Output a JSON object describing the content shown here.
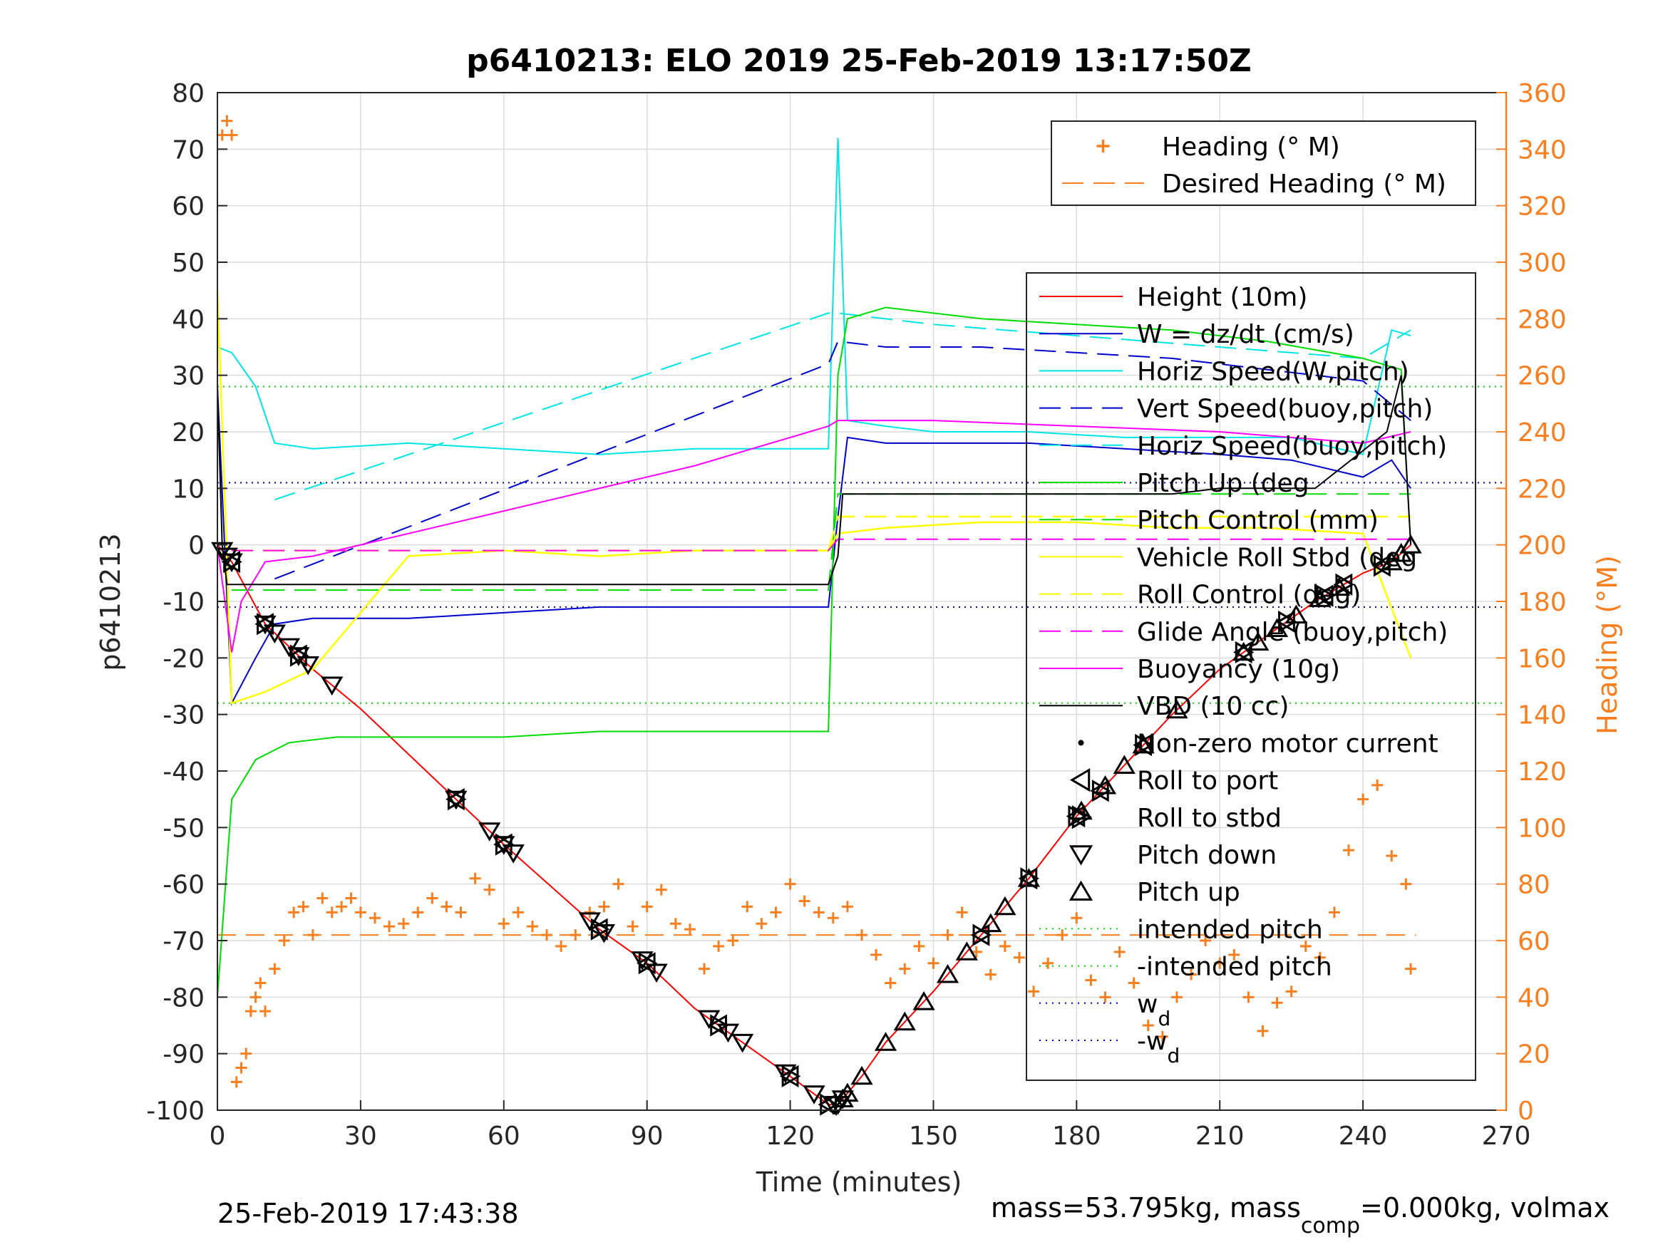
{
  "chart_data": {
    "type": "line",
    "title": "p6410213: ELO 2019 25-Feb-2019 13:17:50Z",
    "xlabel": "Time (minutes)",
    "ylabel_left": "p6410213",
    "ylabel_right": "Heading (°M)",
    "xlim": [
      0,
      270
    ],
    "ylim_left": [
      -100,
      80
    ],
    "ylim_right": [
      0,
      360
    ],
    "xticks": [
      "0",
      "30",
      "60",
      "90",
      "120",
      "150",
      "180",
      "210",
      "240",
      "270"
    ],
    "yticks_left": [
      "80",
      "70",
      "60",
      "50",
      "40",
      "30",
      "20",
      "10",
      "0",
      "-10",
      "-20",
      "-30",
      "-40",
      "-50",
      "-60",
      "-70",
      "-80",
      "-90",
      "-100"
    ],
    "yticks_right": [
      "360",
      "340",
      "320",
      "300",
      "280",
      "260",
      "240",
      "220",
      "200",
      "180",
      "160",
      "140",
      "120",
      "100",
      "80",
      "60",
      "40",
      "20",
      "0"
    ],
    "grid": true,
    "footer_left": "25-Feb-2019 17:43:38",
    "footer_right": {
      "prefix": "mass=53.795kg, mass",
      "subscript": "comp",
      "suffix": "=0.000kg, volmax"
    },
    "legend_heading": [
      {
        "label": "Heading (° M)",
        "color": "#f77f1f",
        "style": "plus"
      },
      {
        "label": "Desired Heading (° M)",
        "color": "#f77f1f",
        "style": "dash"
      }
    ],
    "legend_main": [
      {
        "label": "Height (10m)",
        "color": "#ff0000",
        "style": "solid"
      },
      {
        "label": "W = dz/dt (cm/s)",
        "color": "#0000cc",
        "style": "solid"
      },
      {
        "label": "Horiz Speed(W,pitch)",
        "color": "#00e5e5",
        "style": "solid"
      },
      {
        "label": "Vert Speed(buoy,pitch)",
        "color": "#0000cc",
        "style": "dash"
      },
      {
        "label": "Horiz Speed(buoy,pitch)",
        "color": "#00e5e5",
        "style": "dash"
      },
      {
        "label": "Pitch Up (deg",
        "color": "#00dd00",
        "style": "solid"
      },
      {
        "label": "Pitch Control (mm)",
        "color": "#00dd00",
        "style": "dash"
      },
      {
        "label": "Vehicle Roll Stbd (deg",
        "color": "#ffff00",
        "style": "solid"
      },
      {
        "label": "Roll Control (deg)",
        "color": "#ffff00",
        "style": "dash"
      },
      {
        "label": "Glide Angle (buoy,pitch)",
        "color": "#ff00ff",
        "style": "dash"
      },
      {
        "label": "Buoyancy (10g)",
        "color": "#ff00ff",
        "style": "solid"
      },
      {
        "label": "VBD (10 cc)",
        "color": "#000000",
        "style": "solid"
      },
      {
        "label": "Non-zero motor current",
        "color": "#000000",
        "style": "dot"
      },
      {
        "label": "Roll to port",
        "color": "#000000",
        "style": "tri-left"
      },
      {
        "label": "Roll to stbd",
        "color": "#000000",
        "style": "tri-right"
      },
      {
        "label": "Pitch down",
        "color": "#000000",
        "style": "tri-down"
      },
      {
        "label": "Pitch up",
        "color": "#000000",
        "style": "tri-up"
      },
      {
        "label": "intended pitch",
        "color": "#00dd00",
        "style": "dot-line"
      },
      {
        "label": "-intended pitch",
        "color": "#00dd00",
        "style": "dot-line"
      },
      {
        "label": "w",
        "sub": "d",
        "color": "#0000dd",
        "style": "dot-line"
      },
      {
        "label": "-w",
        "sub": "d",
        "color": "#0000dd",
        "style": "dot-line"
      }
    ],
    "reference_lines": {
      "intended_pitch": 28,
      "neg_intended_pitch": -28,
      "wd": 11,
      "neg_wd": -11,
      "desired_heading": 62
    },
    "series": [
      {
        "name": "Height (10m)",
        "color": "#ff0000",
        "axis": "left",
        "x": [
          0,
          3,
          10,
          20,
          30,
          50,
          60,
          80,
          90,
          100,
          110,
          120,
          128,
          130,
          135,
          140,
          150,
          160,
          170,
          180,
          190,
          200,
          210,
          220,
          230,
          240,
          246,
          250
        ],
        "y": [
          0,
          -3,
          -14,
          -22,
          -29,
          -45,
          -53,
          -68,
          -74,
          -82,
          -88,
          -94,
          -99,
          -99,
          -94,
          -88,
          -79,
          -69,
          -59,
          -48,
          -39,
          -30,
          -22,
          -16,
          -10,
          -5,
          -3,
          0
        ]
      },
      {
        "name": "W = dz/dt (cm/s)",
        "color": "#0000cc",
        "axis": "left",
        "x": [
          0,
          3,
          8,
          12,
          20,
          40,
          60,
          80,
          100,
          120,
          128,
          130,
          132,
          140,
          150,
          170,
          190,
          210,
          225,
          240,
          246,
          250
        ],
        "y": [
          28,
          -28,
          -20,
          -14,
          -13,
          -13,
          -12,
          -11,
          -11,
          -11,
          -11,
          5,
          19,
          18,
          18,
          18,
          17,
          16,
          15,
          12,
          15,
          10
        ]
      },
      {
        "name": "Horiz Speed(W,pitch)",
        "color": "#00e5e5",
        "axis": "left",
        "x": [
          0,
          3,
          8,
          12,
          20,
          40,
          60,
          80,
          100,
          120,
          128,
          130,
          132,
          140,
          150,
          170,
          190,
          210,
          225,
          240,
          246,
          250
        ],
        "y": [
          35,
          34,
          28,
          18,
          17,
          18,
          17,
          16,
          17,
          17,
          17,
          72,
          22,
          21,
          20,
          20,
          19,
          19,
          19,
          16,
          38,
          37
        ]
      },
      {
        "name": "Vert Speed(buoy,pitch)",
        "color": "#0000cc",
        "axis": "left",
        "x": [
          12,
          128,
          130,
          140,
          160,
          180,
          200,
          220,
          240,
          250
        ],
        "y": [
          -6,
          32,
          36,
          35,
          35,
          34,
          33,
          31,
          29,
          22
        ]
      },
      {
        "name": "Horiz Speed(buoy,pitch)",
        "color": "#00e5e5",
        "axis": "left",
        "x": [
          12,
          128,
          130,
          150,
          180,
          210,
          240,
          250
        ],
        "y": [
          8,
          41,
          41,
          39,
          37,
          35,
          33,
          38
        ]
      },
      {
        "name": "Pitch Up (deg",
        "color": "#00dd00",
        "axis": "left",
        "x": [
          0,
          3,
          8,
          15,
          25,
          40,
          60,
          80,
          100,
          120,
          128,
          130,
          132,
          140,
          160,
          180,
          200,
          220,
          240,
          248,
          250
        ],
        "y": [
          -80,
          -45,
          -38,
          -35,
          -34,
          -34,
          -34,
          -33,
          -33,
          -33,
          -33,
          30,
          40,
          42,
          40,
          39,
          38,
          36,
          33,
          31,
          0
        ]
      },
      {
        "name": "Pitch Control (mm)",
        "color": "#00dd00",
        "axis": "left",
        "x": [
          3,
          128,
          130,
          250
        ],
        "y": [
          -8,
          -8,
          9,
          9
        ]
      },
      {
        "name": "Vehicle Roll Stbd (deg",
        "color": "#ffff00",
        "axis": "left",
        "x": [
          0,
          3,
          10,
          20,
          40,
          60,
          80,
          100,
          120,
          128,
          130,
          140,
          160,
          180,
          200,
          220,
          240,
          250
        ],
        "y": [
          45,
          -28,
          -26,
          -22,
          -2,
          -1,
          -2,
          -1,
          -1,
          -1,
          2,
          3,
          4,
          4,
          3,
          3,
          2,
          -20
        ]
      },
      {
        "name": "Roll Control (deg)",
        "color": "#ffff00",
        "axis": "left",
        "x": [
          3,
          128,
          130,
          250
        ],
        "y": [
          -1,
          -1,
          5,
          5
        ]
      },
      {
        "name": "Glide Angle (buoy,pitch)",
        "color": "#ff00ff",
        "axis": "left",
        "x": [
          3,
          128,
          130,
          250
        ],
        "y": [
          -1,
          -1,
          1,
          1
        ]
      },
      {
        "name": "Buoyancy (10g)",
        "color": "#ff00ff",
        "axis": "left",
        "x": [
          0,
          3,
          5,
          10,
          20,
          60,
          100,
          128,
          130,
          150,
          180,
          210,
          240,
          250
        ],
        "y": [
          0,
          -19,
          -10,
          -3,
          -2,
          6,
          14,
          21,
          22,
          22,
          21,
          20,
          18,
          20
        ]
      },
      {
        "name": "VBD (10 cc)",
        "color": "#000000",
        "axis": "left",
        "x": [
          0,
          1,
          2,
          3,
          20,
          60,
          100,
          128,
          130,
          131,
          150,
          180,
          200,
          210,
          230,
          245,
          248,
          250
        ],
        "y": [
          28,
          0,
          -7,
          -7,
          -7,
          -7,
          -7,
          -7,
          -2,
          9,
          9,
          9,
          9,
          10,
          10,
          20,
          30,
          0
        ]
      }
    ],
    "heading_points": {
      "x": [
        1,
        2,
        3,
        4,
        5,
        6,
        7,
        8,
        9,
        10,
        12,
        14,
        16,
        18,
        20,
        22,
        24,
        26,
        28,
        30,
        33,
        36,
        39,
        42,
        45,
        48,
        51,
        54,
        57,
        60,
        63,
        66,
        69,
        72,
        75,
        78,
        81,
        84,
        87,
        90,
        93,
        96,
        99,
        102,
        105,
        108,
        111,
        114,
        117,
        120,
        123,
        126,
        129,
        132,
        135,
        138,
        141,
        144,
        147,
        150,
        153,
        156,
        159,
        162,
        165,
        168,
        171,
        174,
        177,
        180,
        183,
        186,
        189,
        192,
        195,
        198,
        201,
        204,
        207,
        210,
        213,
        216,
        219,
        222,
        225,
        228,
        231,
        234,
        237,
        240,
        243,
        246,
        249,
        250
      ],
      "y": [
        345,
        350,
        345,
        10,
        15,
        20,
        35,
        40,
        45,
        35,
        50,
        60,
        70,
        72,
        62,
        75,
        70,
        72,
        75,
        70,
        68,
        65,
        66,
        70,
        75,
        72,
        70,
        82,
        78,
        66,
        70,
        65,
        62,
        58,
        62,
        70,
        72,
        80,
        65,
        72,
        78,
        66,
        64,
        50,
        58,
        60,
        72,
        66,
        70,
        80,
        74,
        70,
        68,
        72,
        62,
        55,
        45,
        50,
        58,
        52,
        62,
        70,
        56,
        48,
        58,
        54,
        42,
        52,
        62,
        68,
        46,
        40,
        56,
        45,
        30,
        26,
        40,
        48,
        60,
        52,
        55,
        40,
        28,
        38,
        42,
        58,
        54,
        70,
        92,
        110,
        115,
        90,
        80,
        50
      ]
    },
    "markers": [
      {
        "type": "tri-down",
        "x": [
          1,
          2,
          3,
          10,
          12,
          15,
          17,
          19,
          24,
          50,
          57,
          60,
          62,
          78,
          81,
          89,
          92,
          103,
          107,
          110,
          119,
          125,
          129,
          130,
          131
        ]
      },
      {
        "type": "tri-up",
        "x": [
          131,
          132,
          135,
          140,
          144,
          148,
          153,
          157,
          162,
          165,
          170,
          181,
          186,
          190,
          194,
          201,
          215,
          218,
          222,
          226,
          231,
          235,
          246,
          248,
          250
        ]
      },
      {
        "type": "tri-left",
        "x": [
          3,
          10,
          17,
          50,
          60,
          80,
          90,
          105,
          120,
          128,
          160,
          170,
          180,
          185,
          194,
          215,
          224,
          232,
          236,
          244
        ]
      },
      {
        "type": "tri-right",
        "x": [
          3,
          10,
          17,
          50,
          60,
          80,
          90,
          105,
          120,
          128,
          160,
          170,
          180,
          185,
          194,
          215,
          224,
          232,
          236,
          244
        ]
      }
    ]
  }
}
